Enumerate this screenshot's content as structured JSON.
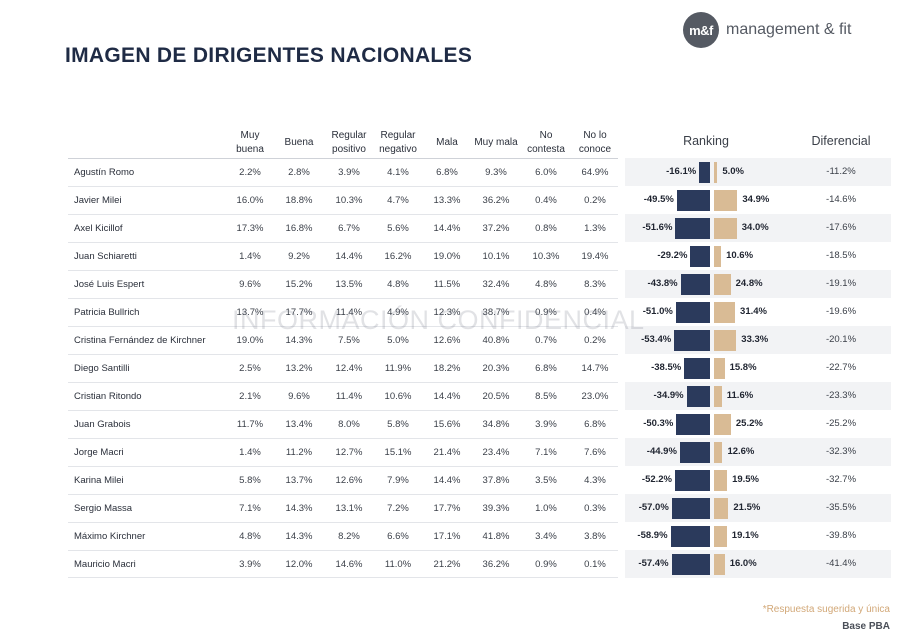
{
  "brand": {
    "logo_mark": "m&f",
    "logo_name": "management & fit",
    "logo_color": "#555a63"
  },
  "title": "IMAGEN DE DIRIGENTES NACIONALES",
  "columns": [
    "Muy buena",
    "Buena",
    "Regular positivo",
    "Regular negativo",
    "Mala",
    "Muy mala",
    "No contesta",
    "No lo conoce"
  ],
  "ranking_header": "Ranking",
  "diferencial_header": "Diferencial",
  "watermark": "INFORMACIÓN CONFIDENCIAL",
  "colors": {
    "negative": "#2b3a5c",
    "positive": "#d9bb95",
    "accent": "#d2a878"
  },
  "rows": [
    {
      "name": "Agustín Romo",
      "values": [
        "2.2%",
        "2.8%",
        "3.9%",
        "4.1%",
        "6.8%",
        "9.3%",
        "6.0%",
        "64.9%"
      ],
      "neg": -16.1,
      "pos": 5.0,
      "neg_label": "-16.1%",
      "pos_label": "5.0%",
      "diff": "-11.2%"
    },
    {
      "name": "Javier Milei",
      "values": [
        "16.0%",
        "18.8%",
        "10.3%",
        "4.7%",
        "13.3%",
        "36.2%",
        "0.4%",
        "0.2%"
      ],
      "neg": -49.5,
      "pos": 34.9,
      "neg_label": "-49.5%",
      "pos_label": "34.9%",
      "diff": "-14.6%"
    },
    {
      "name": "Axel Kicillof",
      "values": [
        "17.3%",
        "16.8%",
        "6.7%",
        "5.6%",
        "14.4%",
        "37.2%",
        "0.8%",
        "1.3%"
      ],
      "neg": -51.6,
      "pos": 34.0,
      "neg_label": "-51.6%",
      "pos_label": "34.0%",
      "diff": "-17.6%"
    },
    {
      "name": "Juan Schiaretti",
      "values": [
        "1.4%",
        "9.2%",
        "14.4%",
        "16.2%",
        "19.0%",
        "10.1%",
        "10.3%",
        "19.4%"
      ],
      "neg": -29.2,
      "pos": 10.6,
      "neg_label": "-29.2%",
      "pos_label": "10.6%",
      "diff": "-18.5%"
    },
    {
      "name": "José Luis Espert",
      "values": [
        "9.6%",
        "15.2%",
        "13.5%",
        "4.8%",
        "11.5%",
        "32.4%",
        "4.8%",
        "8.3%"
      ],
      "neg": -43.8,
      "pos": 24.8,
      "neg_label": "-43.8%",
      "pos_label": "24.8%",
      "diff": "-19.1%"
    },
    {
      "name": "Patricia Bullrich",
      "values": [
        "13.7%",
        "17.7%",
        "11.4%",
        "4.9%",
        "12.3%",
        "38.7%",
        "0.9%",
        "0.4%"
      ],
      "neg": -51.0,
      "pos": 31.4,
      "neg_label": "-51.0%",
      "pos_label": "31.4%",
      "diff": "-19.6%"
    },
    {
      "name": "Cristina Fernández de Kirchner",
      "values": [
        "19.0%",
        "14.3%",
        "7.5%",
        "5.0%",
        "12.6%",
        "40.8%",
        "0.7%",
        "0.2%"
      ],
      "neg": -53.4,
      "pos": 33.3,
      "neg_label": "-53.4%",
      "pos_label": "33.3%",
      "diff": "-20.1%"
    },
    {
      "name": "Diego Santilli",
      "values": [
        "2.5%",
        "13.2%",
        "12.4%",
        "11.9%",
        "18.2%",
        "20.3%",
        "6.8%",
        "14.7%"
      ],
      "neg": -38.5,
      "pos": 15.8,
      "neg_label": "-38.5%",
      "pos_label": "15.8%",
      "diff": "-22.7%"
    },
    {
      "name": "Cristian Ritondo",
      "values": [
        "2.1%",
        "9.6%",
        "11.4%",
        "10.6%",
        "14.4%",
        "20.5%",
        "8.5%",
        "23.0%"
      ],
      "neg": -34.9,
      "pos": 11.6,
      "neg_label": "-34.9%",
      "pos_label": "11.6%",
      "diff": "-23.3%"
    },
    {
      "name": "Juan Grabois",
      "values": [
        "11.7%",
        "13.4%",
        "8.0%",
        "5.8%",
        "15.6%",
        "34.8%",
        "3.9%",
        "6.8%"
      ],
      "neg": -50.3,
      "pos": 25.2,
      "neg_label": "-50.3%",
      "pos_label": "25.2%",
      "diff": "-25.2%"
    },
    {
      "name": "Jorge Macri",
      "values": [
        "1.4%",
        "11.2%",
        "12.7%",
        "15.1%",
        "21.4%",
        "23.4%",
        "7.1%",
        "7.6%"
      ],
      "neg": -44.9,
      "pos": 12.6,
      "neg_label": "-44.9%",
      "pos_label": "12.6%",
      "diff": "-32.3%"
    },
    {
      "name": "Karina Milei",
      "values": [
        "5.8%",
        "13.7%",
        "12.6%",
        "7.9%",
        "14.4%",
        "37.8%",
        "3.5%",
        "4.3%"
      ],
      "neg": -52.2,
      "pos": 19.5,
      "neg_label": "-52.2%",
      "pos_label": "19.5%",
      "diff": "-32.7%"
    },
    {
      "name": "Sergio Massa",
      "values": [
        "7.1%",
        "14.3%",
        "13.1%",
        "7.2%",
        "17.7%",
        "39.3%",
        "1.0%",
        "0.3%"
      ],
      "neg": -57.0,
      "pos": 21.5,
      "neg_label": "-57.0%",
      "pos_label": "21.5%",
      "diff": "-35.5%"
    },
    {
      "name": "Máximo Kirchner",
      "values": [
        "4.8%",
        "14.3%",
        "8.2%",
        "6.6%",
        "17.1%",
        "41.8%",
        "3.4%",
        "3.8%"
      ],
      "neg": -58.9,
      "pos": 19.1,
      "neg_label": "-58.9%",
      "pos_label": "19.1%",
      "diff": "-39.8%"
    },
    {
      "name": "Mauricio Macri",
      "values": [
        "3.9%",
        "12.0%",
        "14.6%",
        "11.0%",
        "21.2%",
        "36.2%",
        "0.9%",
        "0.1%"
      ],
      "neg": -57.4,
      "pos": 16.0,
      "neg_label": "-57.4%",
      "pos_label": "16.0%",
      "diff": "-41.4%"
    }
  ],
  "footnote": "*Respuesta sugerida y única",
  "base": "Base PBA"
}
